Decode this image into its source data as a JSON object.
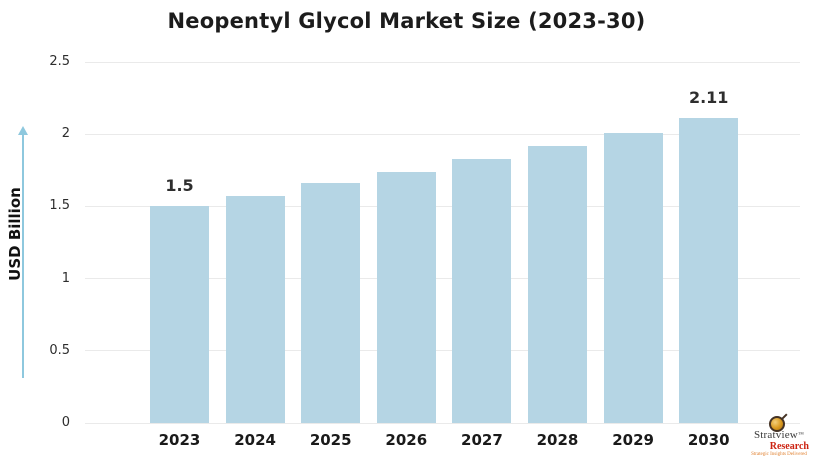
{
  "title": "Neopentyl Glycol Market Size (2023-30)",
  "chart_data": {
    "type": "bar",
    "title": "Neopentyl Glycol Market Size (2023-30)",
    "categories": [
      "2023",
      "2024",
      "2025",
      "2026",
      "2027",
      "2028",
      "2029",
      "2030"
    ],
    "values": [
      1.5,
      1.57,
      1.66,
      1.74,
      1.83,
      1.92,
      2.01,
      2.11
    ],
    "bar_labels": [
      "1.5",
      "",
      "",
      "",
      "",
      "",
      "",
      "2.11"
    ],
    "xlabel": "",
    "ylabel": "USD Billion",
    "ylim": [
      0,
      2.5
    ],
    "ytick_labels": [
      "0",
      "0.5",
      "1",
      "1.5",
      "2",
      "2.5"
    ],
    "yticks": [
      0,
      0.5,
      1,
      1.5,
      2,
      2.5
    ],
    "grid": true,
    "legend": "none",
    "bar_color": "#b5d5e4",
    "gridline_color": "#eaeaea",
    "axis_arrow_color": "#8ec8de"
  },
  "logo": {
    "brand": "Stratview",
    "trademark": "™",
    "sub": "Research",
    "tagline": "Strategic Insights Delivered",
    "icon": "magnifier-icon"
  }
}
